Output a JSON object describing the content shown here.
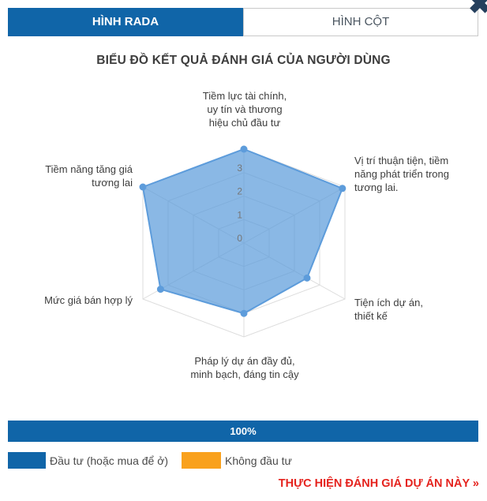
{
  "tabs": [
    {
      "label": "HÌNH RADA",
      "active": true
    },
    {
      "label": "HÌNH CỘT",
      "active": false
    }
  ],
  "icons": {
    "close": "✖"
  },
  "title": "BIỂU ĐỒ KẾT QUẢ ĐÁNH GIÁ CỦA NGƯỜI DÙNG",
  "chart_data": {
    "type": "radar",
    "title": "BIỂU ĐỒ KẾT QUẢ ĐÁNH GIÁ CỦA NGƯỜI DÙNG",
    "categories": [
      "Tiềm lực tài chính, uy tín và thương hiệu chủ đầu tư",
      "Vị trí thuận tiện, tiềm năng phát triển trong tương lai.",
      "Tiện ích dự án, thiết kế",
      "Pháp lý dự án đầy đủ, minh bạch, đáng tin cậy",
      "Mức giá bán hợp lý",
      "Tiềm năng tăng giá tương lai"
    ],
    "series": [
      {
        "name": "Đầu tư (hoặc mua để ở)",
        "values": [
          4,
          3.9,
          2.5,
          3,
          3.3,
          4
        ],
        "color": "#5d9cdb",
        "fill_color": "rgba(93,156,219,0.72)"
      }
    ],
    "scale": {
      "min": 0,
      "max": 4,
      "ticks": [
        0,
        1,
        2,
        3
      ]
    },
    "grid": true,
    "grid_color": "#dcdcdc",
    "tick_color": "#757575",
    "legend_position": "bottom"
  },
  "progress": {
    "label": "100%",
    "percent": 100,
    "color": "#1065a8"
  },
  "legend": [
    {
      "label": "Đầu tư (hoặc mua để ở)",
      "color": "#1065a8"
    },
    {
      "label": "Không đầu tư",
      "color": "#f9a11d"
    }
  ],
  "action_link": {
    "label": "THỰC HIỆN ĐÁNH GIÁ DỰ ÁN NÀY »",
    "color": "#e5231e"
  }
}
